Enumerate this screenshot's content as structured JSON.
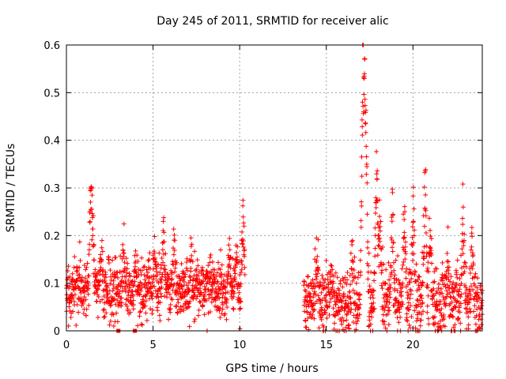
{
  "chart_data": {
    "type": "scatter",
    "title": "Day 245 of 2011, SRMTID for receiver alic",
    "xlabel": "GPS time / hours",
    "ylabel": "SRMTID / TECUs",
    "xlim": [
      0,
      24
    ],
    "ylim": [
      0,
      0.6
    ],
    "xticks": [
      0,
      5,
      10,
      15,
      20
    ],
    "xtick_labels": [
      "0",
      "5",
      "10",
      "15",
      "20"
    ],
    "yticks": [
      0,
      0.1,
      0.2,
      0.3,
      0.4,
      0.5,
      0.6
    ],
    "ytick_labels": [
      "0",
      "0.1",
      "0.2",
      "0.3",
      "0.4",
      "0.5",
      "0.6"
    ],
    "grid": true,
    "marker": "+",
    "color": "#ff0000",
    "series": [
      {
        "name": "SRMTID",
        "segments": [
          {
            "start": 0.0,
            "end": 10.3,
            "step": 0.01,
            "baseline": 0.085,
            "noise": 0.03,
            "spikes": [
              [
                1.4,
                0.29
              ],
              [
                1.5,
                0.24
              ],
              [
                2.0,
                0.16
              ],
              [
                3.3,
                0.18
              ],
              [
                4.0,
                0.15
              ],
              [
                5.1,
                0.17
              ],
              [
                5.6,
                0.23
              ],
              [
                6.2,
                0.2
              ],
              [
                7.2,
                0.14
              ],
              [
                8.4,
                0.13
              ],
              [
                9.4,
                0.19
              ],
              [
                9.8,
                0.17
              ],
              [
                10.2,
                0.25
              ]
            ]
          },
          {
            "start": 13.7,
            "end": 24.0,
            "step": 0.01,
            "baseline": 0.06,
            "noise": 0.035,
            "spikes": [
              [
                14.4,
                0.13
              ],
              [
                15.3,
                0.13
              ],
              [
                16.5,
                0.16
              ],
              [
                17.1,
                0.52
              ],
              [
                17.2,
                0.45
              ],
              [
                17.3,
                0.35
              ],
              [
                17.9,
                0.4
              ],
              [
                18.1,
                0.3
              ],
              [
                18.8,
                0.26
              ],
              [
                19.5,
                0.28
              ],
              [
                20.0,
                0.29
              ],
              [
                20.7,
                0.34
              ],
              [
                21.0,
                0.22
              ],
              [
                22.0,
                0.14
              ],
              [
                22.9,
                0.25
              ],
              [
                23.4,
                0.2
              ]
            ]
          }
        ],
        "isolated_points": [
          [
            3.0,
            0.0
          ],
          [
            3.95,
            0.0
          ]
        ]
      }
    ]
  }
}
